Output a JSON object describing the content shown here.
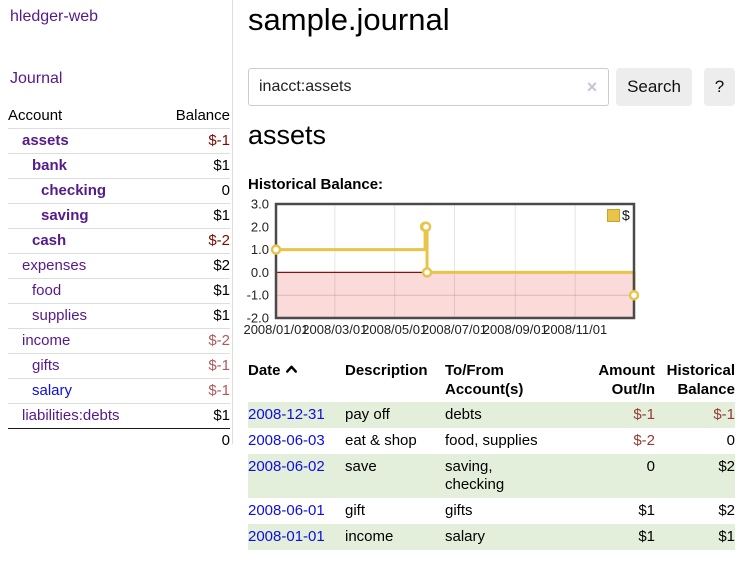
{
  "app": {
    "title": "hledger-web"
  },
  "sidebar": {
    "nav_journal": "Journal",
    "accounts": {
      "col_account": "Account",
      "col_balance": "Balance",
      "rows": [
        {
          "name": "assets",
          "balance": "$-1"
        },
        {
          "name": "bank",
          "balance": "$1"
        },
        {
          "name": "checking",
          "balance": "0"
        },
        {
          "name": "saving",
          "balance": "$1"
        },
        {
          "name": "cash",
          "balance": "$-2"
        },
        {
          "name": "expenses",
          "balance": "$2"
        },
        {
          "name": "food",
          "balance": "$1"
        },
        {
          "name": "supplies",
          "balance": "$1"
        },
        {
          "name": "income",
          "balance": "$-2"
        },
        {
          "name": "gifts",
          "balance": "$-1"
        },
        {
          "name": "salary",
          "balance": "$-1"
        },
        {
          "name": "liabilities:debts",
          "balance": "$1"
        }
      ],
      "total": "0"
    }
  },
  "main": {
    "title": "sample.journal",
    "search": {
      "value": "inacct:assets",
      "button": "Search",
      "help_button": "?"
    },
    "account_heading": "assets",
    "chart_label": "Historical Balance:",
    "register": {
      "headers": {
        "date": "Date",
        "description": "Description",
        "tofrom": "To/From Account(s)",
        "amount": "Amount Out/In",
        "balance": "Historical Balance"
      },
      "rows": [
        {
          "date": "2008-12-31",
          "description": "pay off",
          "accounts": "debts",
          "amount": "$-1",
          "balance": "$-1"
        },
        {
          "date": "2008-06-03",
          "description": "eat & shop",
          "accounts": "food, supplies",
          "amount": "$-2",
          "balance": "0"
        },
        {
          "date": "2008-06-02",
          "description": "save",
          "accounts": "saving, checking",
          "amount": "0",
          "balance": "$2"
        },
        {
          "date": "2008-06-01",
          "description": "gift",
          "accounts": "gifts",
          "amount": "$1",
          "balance": "$2"
        },
        {
          "date": "2008-01-01",
          "description": "income",
          "accounts": "salary",
          "amount": "$1",
          "balance": "$1"
        }
      ]
    }
  },
  "icons": {
    "clear": "×",
    "sort": "chevron-up"
  },
  "chart_data": {
    "type": "line",
    "step": true,
    "title": "Historical Balance",
    "series": [
      {
        "name": "$",
        "color": "#e8c44a",
        "points": [
          [
            "2008/01/01",
            1
          ],
          [
            "2008/06/01",
            2
          ],
          [
            "2008/06/02",
            2
          ],
          [
            "2008/06/03",
            0
          ],
          [
            "2008/12/31",
            -1
          ]
        ]
      }
    ],
    "x_range": [
      "2008/01/01",
      "2008/12/31"
    ],
    "ylim": [
      -2,
      3
    ],
    "ytick_labels": [
      "3.0",
      "2.0",
      "1.0",
      "0.0",
      "-1.0",
      "-2.0"
    ],
    "xticks": [
      "2008/01/01",
      "2008/03/01",
      "2008/05/01",
      "2008/07/01",
      "2008/09/01",
      "2008/11/01"
    ],
    "grid": "vertical",
    "legend_position": "top-right-inside",
    "negative_region_color": "#fbdada",
    "zero_line_color": "#8c1010",
    "plot_border_color": "#4a4a4a"
  }
}
